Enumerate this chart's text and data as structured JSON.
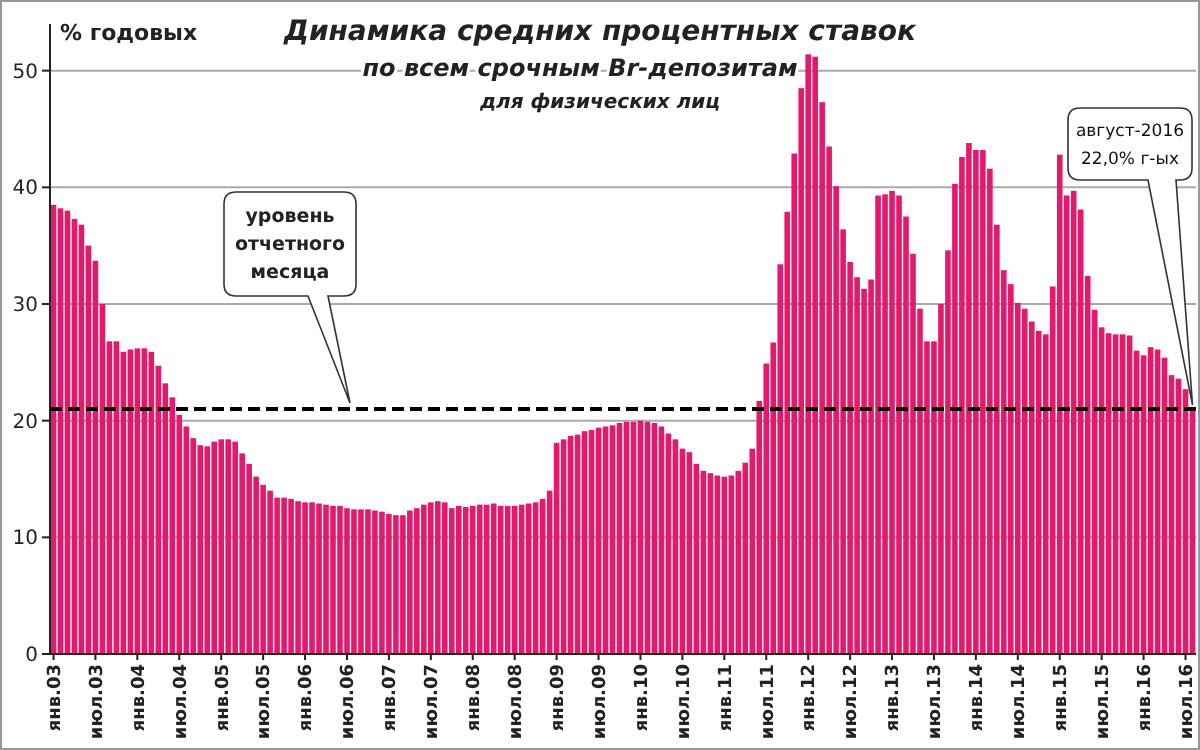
{
  "chart_data": {
    "type": "bar",
    "title": "Динамика средних процентных ставок",
    "subtitle": "по всем срочным Br-депозитам",
    "ylabel": "% годовых",
    "annotations": [
      "для физических лиц",
      "август-2016\n22,0% г-ых"
    ],
    "categories": [
      "янв.03",
      null,
      null,
      null,
      null,
      null,
      "июл.03",
      null,
      null,
      null,
      null,
      null,
      "янв.04",
      null,
      null,
      null,
      null,
      null,
      "июл.04",
      null,
      null,
      null,
      null,
      null,
      "янв.05",
      null,
      null,
      null,
      null,
      null,
      "июл.05",
      null,
      null,
      null,
      null,
      null,
      "янв.06",
      null,
      null,
      null,
      null,
      null,
      "июл.06",
      null,
      null,
      null,
      null,
      null,
      "янв.07",
      null,
      null,
      null,
      null,
      null,
      "июл.07",
      null,
      null,
      null,
      null,
      null,
      "янв.08",
      null,
      null,
      null,
      null,
      null,
      "июл.08",
      null,
      null,
      null,
      null,
      null,
      "янв.09",
      null,
      null,
      null,
      null,
      null,
      "июл.09",
      null,
      null,
      null,
      null,
      null,
      "янв.10",
      null,
      null,
      null,
      null,
      null,
      "июл.10",
      null,
      null,
      null,
      null,
      null,
      "янв.11",
      null,
      null,
      null,
      null,
      null,
      "июл.11",
      null,
      null,
      null,
      null,
      null,
      "янв.12",
      null,
      null,
      null,
      null,
      null,
      "июл.12",
      null,
      null,
      null,
      null,
      null,
      "янв.13",
      null,
      null,
      null,
      null,
      null,
      "июл.13",
      null,
      null,
      null,
      null,
      null,
      "янв.14",
      null,
      null,
      null,
      null,
      null,
      "июл.14",
      null,
      null,
      null,
      null,
      null,
      "янв.15",
      null,
      null,
      null,
      null,
      null,
      "июл.15",
      null,
      null,
      null,
      null,
      null,
      "янв.16",
      null,
      null,
      null,
      null,
      null,
      "июл.16",
      null
    ],
    "values": [
      38.5,
      38.2,
      38,
      37.3,
      36.8,
      35,
      33.7,
      30,
      26.8,
      26.8,
      25.9,
      26.1,
      26.2,
      26.2,
      25.9,
      24.7,
      23.2,
      22,
      20.5,
      19.5,
      18.5,
      17.9,
      17.8,
      18.2,
      18.4,
      18.4,
      18.2,
      17.2,
      16.3,
      15.2,
      14.5,
      14,
      13.4,
      13.4,
      13.3,
      13.1,
      13,
      13,
      12.9,
      12.8,
      12.7,
      12.7,
      12.5,
      12.4,
      12.4,
      12.4,
      12.3,
      12.2,
      12,
      11.9,
      11.9,
      12.3,
      12.5,
      12.8,
      13,
      13.1,
      13,
      12.5,
      12.7,
      12.6,
      12.7,
      12.8,
      12.8,
      12.9,
      12.7,
      12.7,
      12.7,
      12.8,
      12.9,
      13,
      13.3,
      14,
      18.1,
      18.4,
      18.7,
      18.8,
      19.1,
      19.2,
      19.4,
      19.5,
      19.6,
      19.8,
      19.9,
      19.9,
      20,
      19.9,
      19.8,
      19.5,
      18.9,
      18.4,
      17.6,
      17.3,
      16.3,
      15.7,
      15.5,
      15.3,
      15.2,
      15.3,
      15.7,
      16.4,
      17.6,
      21.7,
      24.9,
      26.7,
      33.4,
      37.9,
      42.9,
      48.5,
      51.4,
      51.2,
      47.3,
      43.5,
      40.1,
      36.4,
      33.6,
      32.3,
      31.3,
      32.1,
      39.3,
      39.4,
      39.7,
      39.3,
      37.5,
      34.3,
      29.6,
      26.8,
      26.8,
      30,
      34.6,
      40.3,
      42.6,
      43.8,
      43.2,
      43.2,
      41.6,
      36.8,
      32.9,
      31.7,
      30.1,
      29.6,
      28.5,
      27.7,
      27.4,
      31.5,
      42.8,
      39.3,
      39.7,
      38.1,
      32.4,
      29.5,
      28,
      27.5,
      27.4,
      27.4,
      27.3,
      26,
      25.6,
      26.3,
      26.1,
      25.4,
      23.9,
      23.6,
      22.7,
      21
    ],
    "color": "#e8176a",
    "ylim": [
      0,
      54
    ],
    "yticks": [
      0,
      10,
      20,
      30,
      40,
      50
    ],
    "grid": "y",
    "ref_lines": [
      {
        "axis": "y",
        "value": 21,
        "label": "уровень\nотчетного\nмесяца",
        "color": "#000000",
        "line_style": "dashed"
      }
    ]
  }
}
